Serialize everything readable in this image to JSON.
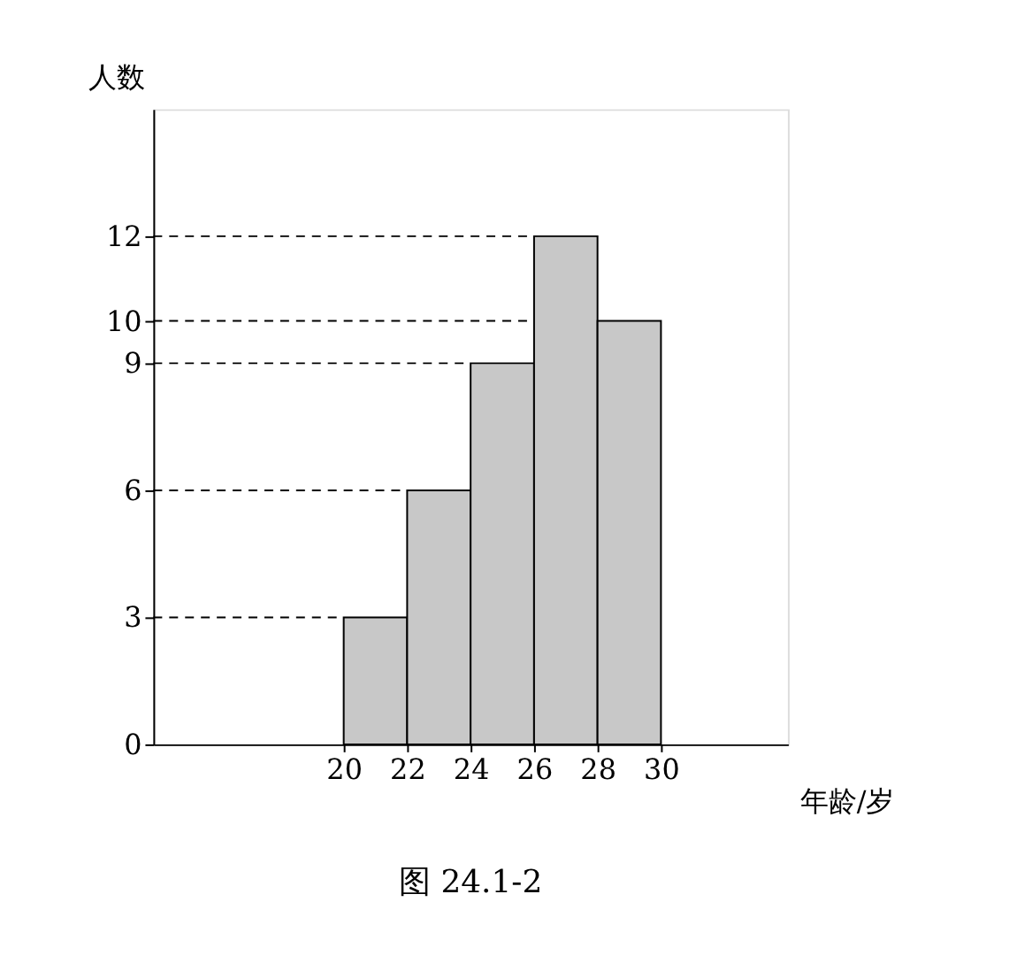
{
  "chart_data": {
    "type": "histogram",
    "bins": [
      20,
      22,
      24,
      26,
      28,
      30
    ],
    "values": [
      3,
      6,
      9,
      12,
      10
    ],
    "color": "#c8c8c8",
    "xlabel": "年龄/岁",
    "ylabel": "人数",
    "xlim": [
      14,
      34
    ],
    "xticks": [
      20,
      22,
      24,
      26,
      28,
      30
    ],
    "ylim": [
      0,
      15
    ],
    "yticks": [
      0,
      3,
      6,
      9,
      10,
      12
    ],
    "ref_lines": [
      {
        "axis": "y",
        "value": 3,
        "line_style": "dashed"
      },
      {
        "axis": "y",
        "value": 6,
        "line_style": "dashed"
      },
      {
        "axis": "y",
        "value": 9,
        "line_style": "dashed"
      },
      {
        "axis": "y",
        "value": 10,
        "line_style": "dashed"
      },
      {
        "axis": "y",
        "value": 12,
        "line_style": "dashed"
      }
    ],
    "annotations": [
      "图 24.1-2"
    ]
  }
}
